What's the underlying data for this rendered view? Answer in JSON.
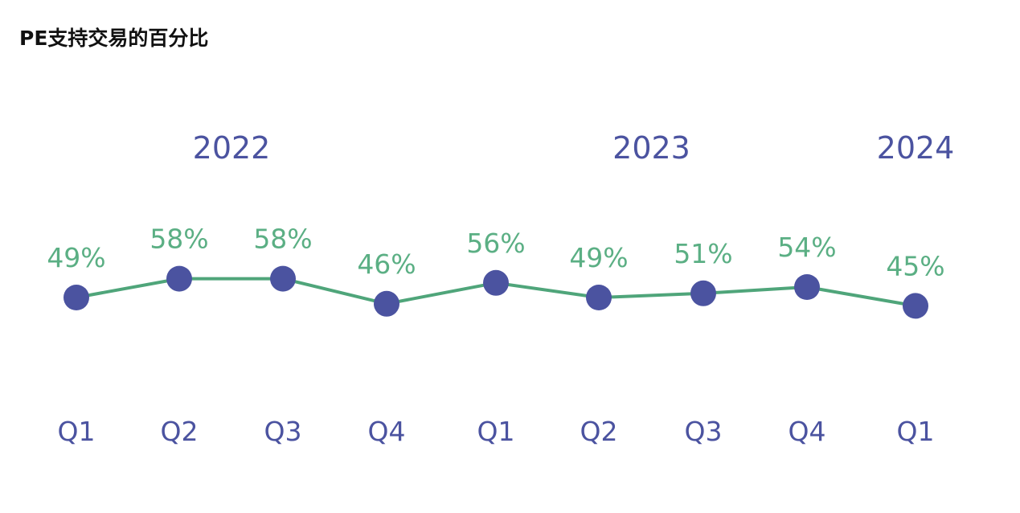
{
  "chart_data": {
    "type": "line",
    "title": "PE支持交易的百分比",
    "years": [
      {
        "label": "2022",
        "span": [
          0,
          3
        ]
      },
      {
        "label": "2023",
        "span": [
          4,
          7
        ]
      },
      {
        "label": "2024",
        "span": [
          8,
          8
        ]
      }
    ],
    "categories": [
      "Q1",
      "Q2",
      "Q3",
      "Q4",
      "Q1",
      "Q2",
      "Q3",
      "Q4",
      "Q1"
    ],
    "values": [
      49,
      58,
      58,
      46,
      56,
      49,
      51,
      54,
      45
    ],
    "value_labels": [
      "49%",
      "58%",
      "58%",
      "46%",
      "56%",
      "49%",
      "51%",
      "54%",
      "45%"
    ],
    "grid": false,
    "legend": "none",
    "colors": {
      "line": "#4FA57A",
      "marker": "#4B53A0",
      "value_label": "#5BAF84",
      "axis_label": "#4B53A0",
      "title": "#111111"
    }
  }
}
